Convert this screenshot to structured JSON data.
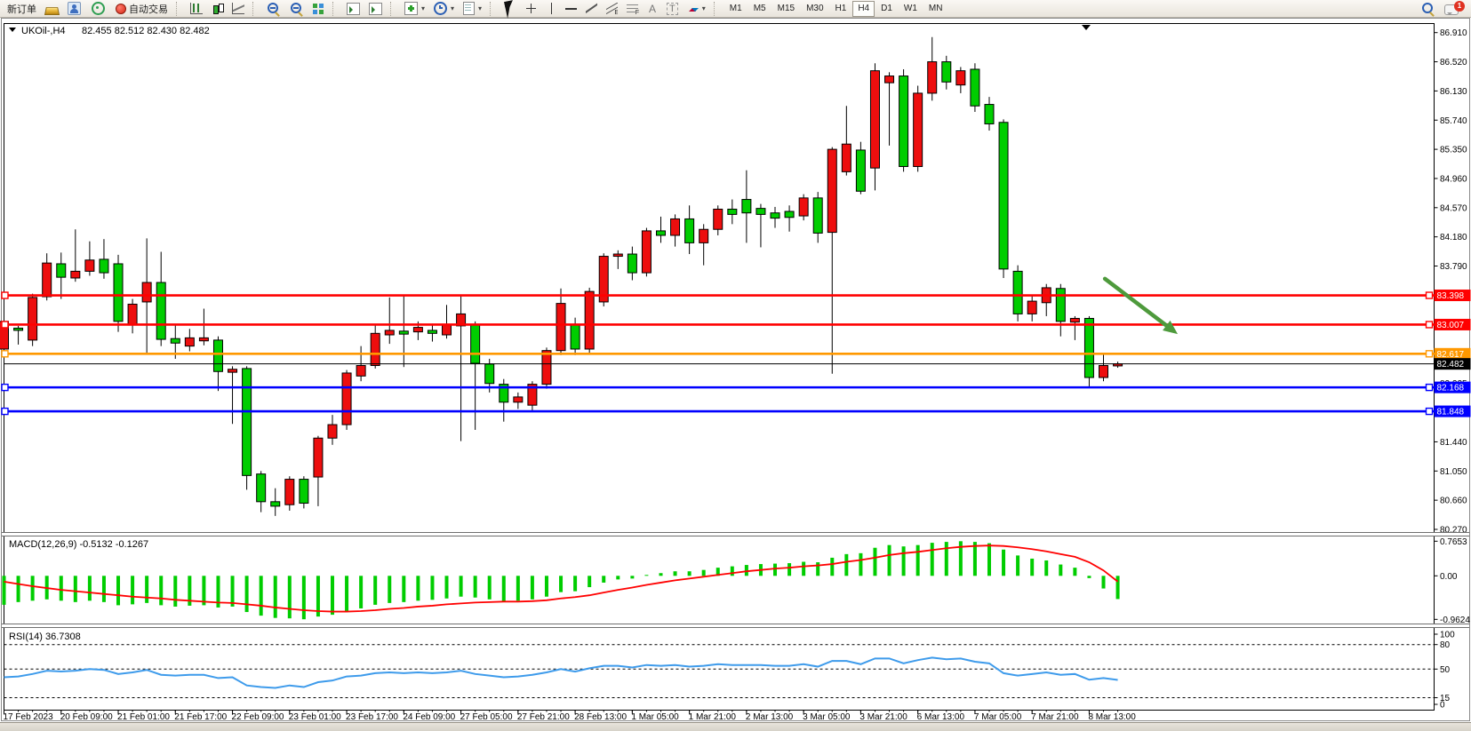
{
  "toolbar": {
    "new_order_label": "新订单",
    "autotrade_label": "自动交易",
    "channel_letter": "E",
    "fibo_letter": "F",
    "text_letter": "A",
    "label_letter": "T",
    "timeframes": [
      "M1",
      "M5",
      "M15",
      "M30",
      "H1",
      "H4",
      "D1",
      "W1",
      "MN"
    ],
    "active_timeframe": "H4",
    "notification_count": "1"
  },
  "chart_data": {
    "type": "candlestick",
    "title": "UKOil-,H4",
    "ohlc_text": "82.455 82.512 82.430 82.482",
    "up_color": "#ED0E0E",
    "down_color": "#00CD00",
    "note": "Chinese color convention: red bodies = up, green bodies = down",
    "price_ticks": [
      "86.910",
      "86.520",
      "86.130",
      "85.740",
      "85.350",
      "84.960",
      "84.570",
      "84.180",
      "83.790",
      "83.400",
      "83.005",
      "82.615",
      "82.225",
      "81.835",
      "81.440",
      "81.050",
      "80.660",
      "80.270"
    ],
    "time_labels": [
      "17 Feb 2023",
      "20 Feb 09:00",
      "21 Feb 01:00",
      "21 Feb 17:00",
      "22 Feb 09:00",
      "23 Feb 01:00",
      "23 Feb 17:00",
      "24 Feb 09:00",
      "27 Feb 05:00",
      "27 Feb 21:00",
      "28 Feb 13:00",
      "1 Mar 05:00",
      "1 Mar 21:00",
      "2 Mar 13:00",
      "3 Mar 05:00",
      "3 Mar 21:00",
      "6 Mar 13:00",
      "7 Mar 05:00",
      "7 Mar 21:00",
      "8 Mar 13:00"
    ],
    "candles": [
      [
        82.68,
        83.1,
        82.4,
        83.05
      ],
      [
        82.96,
        82.99,
        82.74,
        82.93
      ],
      [
        82.8,
        83.42,
        82.72,
        83.37
      ],
      [
        83.38,
        83.96,
        83.33,
        83.83
      ],
      [
        83.82,
        83.97,
        83.35,
        83.64
      ],
      [
        83.63,
        84.28,
        83.58,
        83.72
      ],
      [
        83.72,
        84.12,
        83.66,
        83.87
      ],
      [
        83.88,
        84.15,
        83.62,
        83.7
      ],
      [
        83.82,
        83.94,
        82.91,
        83.05
      ],
      [
        83.0,
        83.35,
        82.89,
        83.28
      ],
      [
        83.31,
        84.16,
        82.62,
        83.57
      ],
      [
        83.57,
        83.98,
        82.72,
        82.81
      ],
      [
        82.82,
        83.0,
        82.55,
        82.76
      ],
      [
        82.72,
        82.95,
        82.65,
        82.83
      ],
      [
        82.79,
        83.22,
        82.73,
        82.83
      ],
      [
        82.8,
        82.85,
        82.12,
        82.38
      ],
      [
        82.37,
        82.45,
        81.68,
        82.41
      ],
      [
        82.42,
        82.45,
        80.8,
        80.99
      ],
      [
        81.01,
        81.05,
        80.5,
        80.64
      ],
      [
        80.64,
        80.82,
        80.45,
        80.58
      ],
      [
        80.6,
        80.98,
        80.52,
        80.94
      ],
      [
        80.94,
        80.98,
        80.55,
        80.62
      ],
      [
        80.97,
        81.52,
        80.58,
        81.49
      ],
      [
        81.49,
        81.8,
        81.4,
        81.67
      ],
      [
        81.67,
        82.4,
        81.6,
        82.36
      ],
      [
        82.32,
        82.72,
        82.25,
        82.46
      ],
      [
        82.46,
        83.0,
        82.42,
        82.89
      ],
      [
        82.87,
        83.37,
        82.75,
        82.93
      ],
      [
        82.92,
        83.39,
        82.44,
        82.88
      ],
      [
        82.91,
        83.05,
        82.8,
        82.97
      ],
      [
        82.93,
        83.02,
        82.78,
        82.89
      ],
      [
        82.87,
        83.27,
        82.82,
        83.01
      ],
      [
        82.99,
        83.41,
        81.45,
        83.15
      ],
      [
        83.0,
        83.05,
        81.6,
        82.49
      ],
      [
        82.48,
        82.55,
        82.1,
        82.22
      ],
      [
        82.21,
        82.28,
        81.71,
        81.97
      ],
      [
        81.97,
        82.1,
        81.88,
        82.04
      ],
      [
        81.93,
        82.25,
        81.85,
        82.21
      ],
      [
        82.21,
        82.7,
        82.15,
        82.66
      ],
      [
        82.66,
        83.49,
        82.6,
        83.29
      ],
      [
        83.01,
        83.1,
        82.6,
        82.68
      ],
      [
        82.68,
        83.5,
        82.62,
        83.45
      ],
      [
        83.31,
        83.96,
        83.25,
        83.92
      ],
      [
        83.92,
        84.0,
        83.75,
        83.95
      ],
      [
        83.95,
        84.05,
        83.6,
        83.7
      ],
      [
        83.7,
        84.3,
        83.65,
        84.26
      ],
      [
        84.26,
        84.45,
        84.1,
        84.2
      ],
      [
        84.2,
        84.48,
        84.05,
        84.42
      ],
      [
        84.42,
        84.6,
        83.95,
        84.1
      ],
      [
        84.1,
        84.35,
        83.8,
        84.28
      ],
      [
        84.28,
        84.6,
        84.2,
        84.55
      ],
      [
        84.55,
        84.68,
        84.35,
        84.48
      ],
      [
        84.68,
        85.07,
        84.1,
        84.5
      ],
      [
        84.56,
        84.62,
        84.04,
        84.48
      ],
      [
        84.5,
        84.58,
        84.3,
        84.43
      ],
      [
        84.52,
        84.6,
        84.25,
        84.44
      ],
      [
        84.46,
        84.75,
        84.4,
        84.7
      ],
      [
        84.7,
        84.78,
        84.1,
        84.23
      ],
      [
        84.24,
        85.38,
        82.35,
        85.35
      ],
      [
        85.05,
        85.93,
        85.0,
        85.42
      ],
      [
        85.34,
        85.45,
        84.75,
        84.79
      ],
      [
        85.1,
        86.5,
        84.8,
        86.4
      ],
      [
        86.24,
        86.38,
        85.4,
        86.33
      ],
      [
        86.33,
        86.42,
        85.05,
        85.12
      ],
      [
        85.12,
        86.2,
        85.05,
        86.1
      ],
      [
        86.1,
        86.85,
        86.0,
        86.52
      ],
      [
        86.52,
        86.6,
        86.15,
        86.25
      ],
      [
        86.21,
        86.45,
        86.1,
        86.4
      ],
      [
        86.42,
        86.5,
        85.85,
        85.93
      ],
      [
        85.95,
        86.05,
        85.6,
        85.69
      ],
      [
        85.71,
        85.75,
        83.63,
        83.75
      ],
      [
        83.72,
        83.8,
        83.05,
        83.15
      ],
      [
        83.15,
        83.4,
        83.05,
        83.32
      ],
      [
        83.3,
        83.55,
        83.12,
        83.5
      ],
      [
        83.49,
        83.55,
        82.85,
        83.05
      ],
      [
        83.04,
        83.12,
        82.8,
        83.09
      ],
      [
        83.09,
        83.12,
        82.16,
        82.3
      ],
      [
        82.3,
        82.62,
        82.25,
        82.46
      ],
      [
        82.455,
        82.512,
        82.43,
        82.482
      ]
    ],
    "hlines": [
      {
        "price": 83.398,
        "label": "83.398",
        "color": "#FF0000"
      },
      {
        "price": 83.007,
        "label": "83.007",
        "color": "#FF0000"
      },
      {
        "price": 82.617,
        "label": "82.617",
        "color": "#FF9800"
      },
      {
        "price": 82.168,
        "label": "82.168",
        "color": "#0000FF"
      },
      {
        "price": 81.848,
        "label": "81.848",
        "color": "#0000FF"
      }
    ],
    "current_price": {
      "value": 82.482,
      "label": "82.482",
      "color": "#000000"
    },
    "arrow": {
      "bar_from": 77.1,
      "price_from": 83.62,
      "bar_to": 82.2,
      "price_to": 82.88,
      "color": "#4E9A3C"
    },
    "macd": {
      "label": "MACD(12,26,9) -0.5132 -0.1267",
      "value": -0.5132,
      "signal_value": -0.1267,
      "hist_color": "#00CD00",
      "signal_color": "#FF0000",
      "scale": [
        {
          "label": "0.7653",
          "value": 0.7653
        },
        {
          "label": "0.00",
          "value": 0
        },
        {
          "label": "-0.9624",
          "value": -0.9624
        }
      ],
      "histogram": [
        -0.64,
        -0.58,
        -0.55,
        -0.52,
        -0.55,
        -0.58,
        -0.55,
        -0.58,
        -0.65,
        -0.63,
        -0.6,
        -0.65,
        -0.68,
        -0.66,
        -0.65,
        -0.7,
        -0.68,
        -0.8,
        -0.88,
        -0.93,
        -0.94,
        -0.96,
        -0.9,
        -0.86,
        -0.78,
        -0.72,
        -0.64,
        -0.6,
        -0.58,
        -0.55,
        -0.53,
        -0.5,
        -0.46,
        -0.48,
        -0.52,
        -0.56,
        -0.55,
        -0.52,
        -0.46,
        -0.36,
        -0.34,
        -0.25,
        -0.15,
        -0.08,
        -0.06,
        0.02,
        0.06,
        0.1,
        0.1,
        0.13,
        0.18,
        0.21,
        0.24,
        0.26,
        0.27,
        0.28,
        0.31,
        0.3,
        0.4,
        0.48,
        0.5,
        0.62,
        0.68,
        0.65,
        0.68,
        0.73,
        0.75,
        0.765,
        0.75,
        0.72,
        0.58,
        0.45,
        0.38,
        0.34,
        0.25,
        0.18,
        -0.05,
        -0.28,
        -0.5132
      ],
      "signal": [
        -0.13,
        -0.18,
        -0.23,
        -0.27,
        -0.31,
        -0.34,
        -0.37,
        -0.4,
        -0.43,
        -0.46,
        -0.48,
        -0.5,
        -0.53,
        -0.55,
        -0.57,
        -0.59,
        -0.6,
        -0.63,
        -0.66,
        -0.7,
        -0.73,
        -0.76,
        -0.78,
        -0.79,
        -0.79,
        -0.78,
        -0.76,
        -0.73,
        -0.71,
        -0.68,
        -0.66,
        -0.63,
        -0.61,
        -0.59,
        -0.58,
        -0.57,
        -0.57,
        -0.56,
        -0.54,
        -0.5,
        -0.47,
        -0.43,
        -0.37,
        -0.31,
        -0.26,
        -0.2,
        -0.15,
        -0.1,
        -0.06,
        -0.02,
        0.02,
        0.06,
        0.1,
        0.13,
        0.16,
        0.18,
        0.21,
        0.23,
        0.26,
        0.31,
        0.35,
        0.4,
        0.46,
        0.5,
        0.53,
        0.57,
        0.61,
        0.64,
        0.66,
        0.67,
        0.66,
        0.63,
        0.59,
        0.54,
        0.48,
        0.42,
        0.3,
        0.12,
        -0.1267
      ]
    },
    "rsi": {
      "label": "RSI(14) 36.7308",
      "value": 36.7308,
      "color": "#3E9BEB",
      "levels": [
        80,
        50,
        15
      ],
      "scale_labels": [
        {
          "label": "100",
          "value": 100
        },
        {
          "label": "80",
          "value": 80
        },
        {
          "label": "50",
          "value": 50
        },
        {
          "label": "15",
          "value": 15
        },
        {
          "label": "0",
          "value": 0
        }
      ],
      "values": [
        40,
        41,
        44,
        48,
        47,
        48,
        50,
        49,
        44,
        46,
        49,
        43,
        42,
        43,
        43,
        39,
        40,
        30,
        28,
        27,
        30,
        28,
        34,
        36,
        41,
        42,
        45,
        46,
        45,
        46,
        45,
        46,
        48,
        44,
        42,
        40,
        41,
        43,
        46,
        50,
        47,
        51,
        54,
        54,
        52,
        55,
        54,
        55,
        53,
        54,
        56,
        55,
        55,
        55,
        54,
        54,
        56,
        53,
        60,
        60,
        56,
        63,
        63,
        57,
        61,
        64,
        62,
        63,
        59,
        57,
        45,
        42,
        44,
        46,
        43,
        44,
        37,
        39,
        36.73
      ]
    }
  }
}
